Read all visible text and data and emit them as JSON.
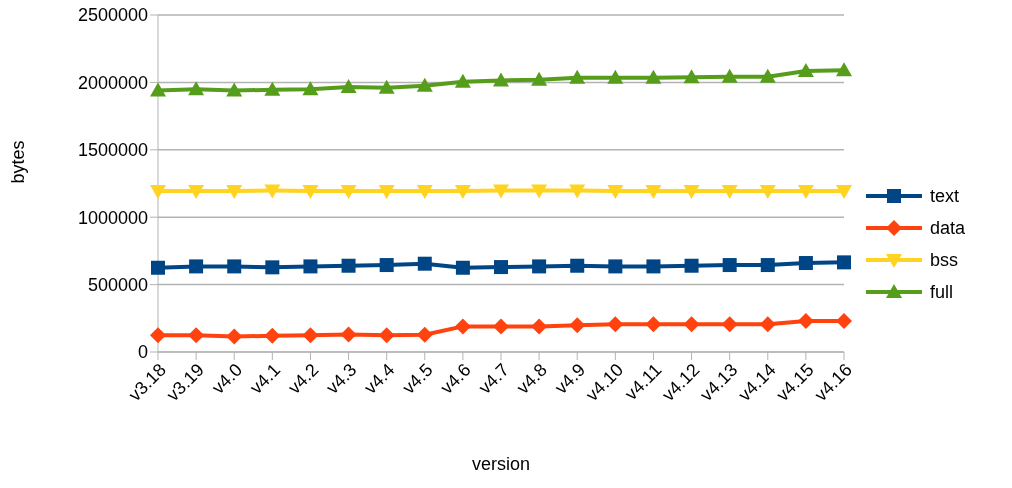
{
  "chart_data": {
    "type": "line",
    "xlabel": "version",
    "ylabel": "bytes",
    "categories": [
      "v3.18",
      "v3.19",
      "v4.0",
      "v4.1",
      "v4.2",
      "v4.3",
      "v4.4",
      "v4.5",
      "v4.6",
      "v4.7",
      "v4.8",
      "v4.9",
      "v4.10",
      "v4.11",
      "v4.12",
      "v4.13",
      "v4.14",
      "v4.15",
      "v4.16"
    ],
    "series": [
      {
        "name": "text",
        "color": "#004586",
        "marker": "square",
        "values": [
          625000,
          635000,
          635000,
          628000,
          635000,
          640000,
          645000,
          655000,
          625000,
          630000,
          635000,
          640000,
          635000,
          635000,
          640000,
          645000,
          645000,
          660000,
          665000
        ]
      },
      {
        "name": "data",
        "color": "#ff420e",
        "marker": "diamond",
        "values": [
          125000,
          125000,
          115000,
          120000,
          125000,
          130000,
          125000,
          128000,
          190000,
          190000,
          190000,
          198000,
          205000,
          205000,
          205000,
          205000,
          205000,
          230000,
          230000
        ]
      },
      {
        "name": "bss",
        "color": "#ffd320",
        "marker": "triangle-down",
        "values": [
          1195000,
          1195000,
          1195000,
          1198000,
          1195000,
          1195000,
          1195000,
          1195000,
          1195000,
          1198000,
          1198000,
          1198000,
          1195000,
          1195000,
          1195000,
          1195000,
          1195000,
          1195000,
          1195000
        ]
      },
      {
        "name": "full",
        "color": "#579d1c",
        "marker": "triangle",
        "values": [
          1940000,
          1950000,
          1940000,
          1945000,
          1950000,
          1965000,
          1960000,
          1975000,
          2005000,
          2015000,
          2020000,
          2035000,
          2035000,
          2035000,
          2038000,
          2042000,
          2042000,
          2085000,
          2090000
        ]
      }
    ],
    "ylim": [
      0,
      2500000
    ],
    "yticks": [
      0,
      500000,
      1000000,
      1500000,
      2000000,
      2500000
    ],
    "grid": "y",
    "legend": "right",
    "line_style": "solid"
  }
}
